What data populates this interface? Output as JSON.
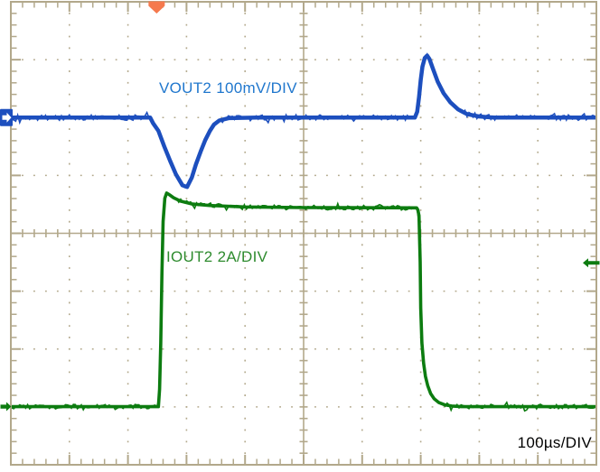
{
  "scope": {
    "labels": {
      "vout2": "VOUT2 100mV/DIV",
      "iout2": "IOUT2 2A/DIV",
      "timebase": "100µs/DIV"
    },
    "colors": {
      "background": "#ffffff",
      "grid": "#b2a88b",
      "vout2_trace": "#1d4fbe",
      "vout2_label": "#2077cd",
      "iout2_trace": "#0d7c10",
      "iout2_label": "#2e8b2e",
      "trigger": "#f5794d",
      "timebase_text": "#000000"
    },
    "markers": {
      "trigger": {
        "shape": "down-arrow",
        "time_us": 249
      },
      "vout2_ground": {
        "edge": "left",
        "position_div": 2.0
      },
      "iout2_ground": {
        "edge": "left",
        "position_div": 6.995
      },
      "right_reference": {
        "edge": "right",
        "position_div": 4.51
      }
    }
  },
  "chart_data": {
    "type": "line",
    "x_unit": "µs",
    "x_range_us": [
      0,
      1000
    ],
    "time_per_div": "100µs",
    "divisions": {
      "x": 10,
      "y": 8
    },
    "grid": "dotted graticule, solid center axes with minor ticks",
    "legend_position": "inline channel labels",
    "series": [
      {
        "name": "VOUT2",
        "label": "VOUT2 100mV/DIV",
        "unit": "mV",
        "values_are": "deviation from regulation baseline",
        "per_div": 100,
        "baseline_div": 2.0,
        "points": [
          [
            0,
            0
          ],
          [
            238,
            0
          ],
          [
            243,
            -10
          ],
          [
            252,
            -23
          ],
          [
            262,
            -50
          ],
          [
            272,
            -75
          ],
          [
            282,
            -98
          ],
          [
            293,
            -117
          ],
          [
            301,
            -120
          ],
          [
            309,
            -104
          ],
          [
            316,
            -81
          ],
          [
            324,
            -59
          ],
          [
            332,
            -39
          ],
          [
            340,
            -23
          ],
          [
            347,
            -12
          ],
          [
            356,
            -5
          ],
          [
            372,
            -1
          ],
          [
            420,
            0
          ],
          [
            690,
            0
          ],
          [
            694,
            10
          ],
          [
            697,
            35
          ],
          [
            700,
            65
          ],
          [
            703,
            88
          ],
          [
            707,
            103
          ],
          [
            711,
            107
          ],
          [
            715,
            101
          ],
          [
            721,
            84
          ],
          [
            729,
            62
          ],
          [
            739,
            42
          ],
          [
            751,
            26
          ],
          [
            764,
            14
          ],
          [
            779,
            6
          ],
          [
            799,
            2
          ],
          [
            824,
            0
          ],
          [
            1000,
            0
          ]
        ]
      },
      {
        "name": "IOUT2",
        "label": "IOUT2 2A/DIV",
        "unit": "A",
        "values_are": "load current",
        "per_div": 2,
        "baseline_div": 6.995,
        "points": [
          [
            0,
            0
          ],
          [
            252,
            0
          ],
          [
            254,
            0.6
          ],
          [
            256,
            2.2
          ],
          [
            258,
            4.6
          ],
          [
            260,
            6.4
          ],
          [
            263,
            7.2
          ],
          [
            266,
            7.38
          ],
          [
            271,
            7.32
          ],
          [
            278,
            7.22
          ],
          [
            290,
            7.1
          ],
          [
            310,
            7.0
          ],
          [
            340,
            6.95
          ],
          [
            400,
            6.9
          ],
          [
            500,
            6.88
          ],
          [
            693,
            6.87
          ],
          [
            695,
            6.8
          ],
          [
            697,
            6.6
          ],
          [
            699,
            5.0
          ],
          [
            700,
            3.4
          ],
          [
            702,
            2.2
          ],
          [
            705,
            1.5
          ],
          [
            708,
            1.05
          ],
          [
            712,
            0.72
          ],
          [
            717,
            0.45
          ],
          [
            723,
            0.27
          ],
          [
            731,
            0.14
          ],
          [
            741,
            0.06
          ],
          [
            753,
            0.02
          ],
          [
            770,
            0
          ],
          [
            1000,
            0
          ]
        ]
      }
    ]
  }
}
